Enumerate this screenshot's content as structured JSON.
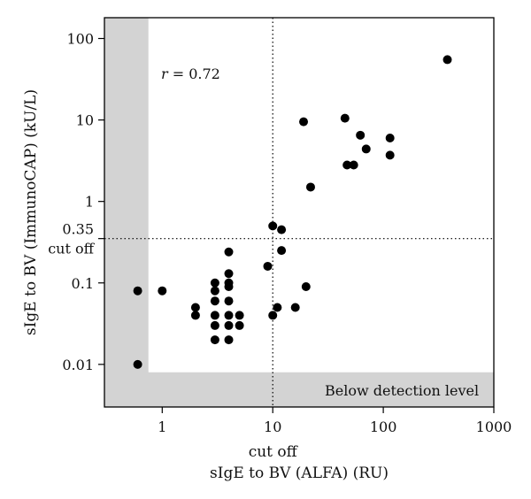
{
  "chart_data": {
    "type": "scatter",
    "xscale": "log",
    "yscale": "log",
    "xlim": [
      0.3,
      1000
    ],
    "ylim": [
      0.003,
      180
    ],
    "xlabel": "sIgE to BV (ALFA) (RU)",
    "ylabel": "sIgE to BV (ImmunoCAP) (kU/L)",
    "xticks": [
      {
        "value": 1,
        "label": "1"
      },
      {
        "value": 10,
        "label": "10"
      },
      {
        "value": 100,
        "label": "100"
      },
      {
        "value": 1000,
        "label": "1000"
      }
    ],
    "yticks": [
      {
        "value": 0.01,
        "label": "0.01"
      },
      {
        "value": 0.1,
        "label": "0.1"
      },
      {
        "value": 1,
        "label": "1"
      },
      {
        "value": 10,
        "label": "10"
      },
      {
        "value": 100,
        "label": "100"
      }
    ],
    "x_cutoff": {
      "value": 10,
      "label": "cut off"
    },
    "y_cutoff": {
      "value": 0.35,
      "value_label": "0.35",
      "label": "cut off"
    },
    "below_detection": {
      "x_max": 0.75,
      "y_max": 0.008,
      "label": "Below detection level"
    },
    "correlation_label": "r = 0.72",
    "colors": {
      "points": "#000000",
      "shade": "#d3d3d3",
      "frame": "#000000"
    },
    "points": [
      {
        "x": 0.6,
        "y": 0.08
      },
      {
        "x": 0.6,
        "y": 0.01
      },
      {
        "x": 1.0,
        "y": 0.08
      },
      {
        "x": 2.0,
        "y": 0.05
      },
      {
        "x": 2.0,
        "y": 0.04
      },
      {
        "x": 3.0,
        "y": 0.1
      },
      {
        "x": 3.0,
        "y": 0.08
      },
      {
        "x": 3.0,
        "y": 0.06
      },
      {
        "x": 3.0,
        "y": 0.04
      },
      {
        "x": 3.0,
        "y": 0.03
      },
      {
        "x": 3.0,
        "y": 0.02
      },
      {
        "x": 4.0,
        "y": 0.24
      },
      {
        "x": 4.0,
        "y": 0.13
      },
      {
        "x": 4.0,
        "y": 0.1
      },
      {
        "x": 4.0,
        "y": 0.09
      },
      {
        "x": 4.0,
        "y": 0.06
      },
      {
        "x": 4.0,
        "y": 0.04
      },
      {
        "x": 4.0,
        "y": 0.03
      },
      {
        "x": 4.0,
        "y": 0.02
      },
      {
        "x": 5.0,
        "y": 0.04
      },
      {
        "x": 5.0,
        "y": 0.03
      },
      {
        "x": 9.0,
        "y": 0.16
      },
      {
        "x": 10.0,
        "y": 0.5
      },
      {
        "x": 10.0,
        "y": 0.04
      },
      {
        "x": 11.0,
        "y": 0.05
      },
      {
        "x": 12.0,
        "y": 0.45
      },
      {
        "x": 12.0,
        "y": 0.25
      },
      {
        "x": 16.0,
        "y": 0.05
      },
      {
        "x": 19.0,
        "y": 9.5
      },
      {
        "x": 20.0,
        "y": 0.09
      },
      {
        "x": 22.0,
        "y": 1.5
      },
      {
        "x": 45.0,
        "y": 10.5
      },
      {
        "x": 47.0,
        "y": 2.8
      },
      {
        "x": 54.0,
        "y": 2.8
      },
      {
        "x": 62.0,
        "y": 6.5
      },
      {
        "x": 70.0,
        "y": 4.4
      },
      {
        "x": 115.0,
        "y": 6.0
      },
      {
        "x": 115.0,
        "y": 3.7
      },
      {
        "x": 380.0,
        "y": 55.0
      }
    ]
  }
}
